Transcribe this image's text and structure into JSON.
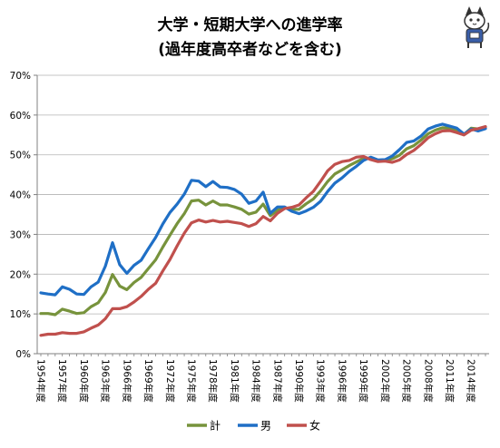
{
  "chart_data": {
    "type": "line",
    "title": "大学・短期大学への進学率",
    "subtitle": "(過年度高卒者などを含む)",
    "xlabel": "",
    "ylabel": "",
    "y_unit": "%",
    "ylim": [
      0,
      70
    ],
    "yticks": [
      0,
      10,
      20,
      30,
      40,
      50,
      60,
      70
    ],
    "grid": true,
    "legend_position": "bottom",
    "x": [
      1954,
      1955,
      1956,
      1957,
      1958,
      1959,
      1960,
      1961,
      1962,
      1963,
      1964,
      1965,
      1966,
      1967,
      1968,
      1969,
      1970,
      1971,
      1972,
      1973,
      1974,
      1975,
      1976,
      1977,
      1978,
      1979,
      1980,
      1981,
      1982,
      1983,
      1984,
      1985,
      1986,
      1987,
      1988,
      1989,
      1990,
      1991,
      1992,
      1993,
      1994,
      1995,
      1996,
      1997,
      1998,
      1999,
      2000,
      2001,
      2002,
      2003,
      2004,
      2005,
      2006,
      2007,
      2008,
      2009,
      2010,
      2011,
      2012,
      2013,
      2014,
      2015,
      2016
    ],
    "x_tick_labels": [
      "1954年度",
      "1957年度",
      "1960年度",
      "1963年度",
      "1966年度",
      "1969年度",
      "1972年度",
      "1975年度",
      "1978年度",
      "1981年度",
      "1984年度",
      "1987年度",
      "1990年度",
      "1993年度",
      "1996年度",
      "1999年度",
      "2002年度",
      "2005年度",
      "2008年度",
      "2011年度",
      "2014年度"
    ],
    "series": [
      {
        "name": "計",
        "color": "#77933c",
        "values": [
          10.1,
          10.1,
          9.8,
          11.2,
          10.7,
          10.1,
          10.3,
          11.8,
          12.8,
          15.4,
          19.9,
          17.0,
          16.1,
          17.9,
          19.2,
          21.4,
          23.6,
          26.8,
          29.8,
          32.7,
          35.2,
          38.4,
          38.6,
          37.4,
          38.4,
          37.4,
          37.4,
          36.9,
          36.3,
          35.1,
          35.6,
          37.6,
          34.7,
          36.1,
          36.7,
          36.3,
          36.3,
          37.7,
          38.9,
          40.9,
          43.3,
          45.2,
          46.2,
          47.3,
          48.2,
          49.1,
          49.1,
          48.6,
          48.6,
          49.0,
          49.9,
          51.5,
          52.3,
          53.7,
          55.3,
          56.2,
          56.8,
          56.7,
          56.2,
          55.1,
          56.7,
          56.5,
          56.8
        ]
      },
      {
        "name": "男",
        "color": "#1f6fc6",
        "values": [
          15.3,
          15.0,
          14.8,
          16.8,
          16.2,
          15.0,
          14.9,
          16.8,
          18.0,
          22.0,
          27.9,
          22.4,
          20.2,
          22.2,
          23.5,
          26.4,
          29.2,
          32.6,
          35.5,
          37.6,
          40.1,
          43.6,
          43.4,
          42.0,
          43.3,
          41.9,
          41.8,
          41.3,
          40.1,
          37.8,
          38.4,
          40.6,
          35.3,
          36.9,
          36.9,
          35.8,
          35.2,
          35.9,
          36.8,
          38.3,
          40.8,
          42.9,
          44.2,
          45.8,
          47.1,
          48.6,
          49.4,
          48.7,
          48.8,
          49.7,
          51.3,
          53.1,
          53.5,
          54.7,
          56.5,
          57.2,
          57.7,
          57.2,
          56.7,
          55.2,
          56.5,
          56.0,
          56.6
        ]
      },
      {
        "name": "女",
        "color": "#c0504d",
        "values": [
          4.6,
          4.9,
          4.9,
          5.3,
          5.1,
          5.1,
          5.5,
          6.4,
          7.2,
          8.8,
          11.3,
          11.3,
          11.8,
          13.0,
          14.4,
          16.2,
          17.7,
          20.8,
          23.7,
          27.1,
          30.3,
          32.9,
          33.6,
          33.1,
          33.5,
          33.1,
          33.3,
          33.0,
          32.7,
          32.0,
          32.7,
          34.5,
          33.4,
          35.3,
          36.5,
          36.8,
          37.4,
          39.2,
          40.8,
          43.3,
          46.0,
          47.6,
          48.3,
          48.6,
          49.4,
          49.6,
          48.8,
          48.3,
          48.4,
          48.1,
          48.7,
          50.1,
          51.1,
          52.6,
          54.3,
          55.3,
          56.0,
          56.1,
          55.6,
          55.0,
          56.2,
          56.6,
          57.1
        ]
      }
    ]
  },
  "decor": {
    "mascot_icon": "cat-mascot-icon"
  }
}
